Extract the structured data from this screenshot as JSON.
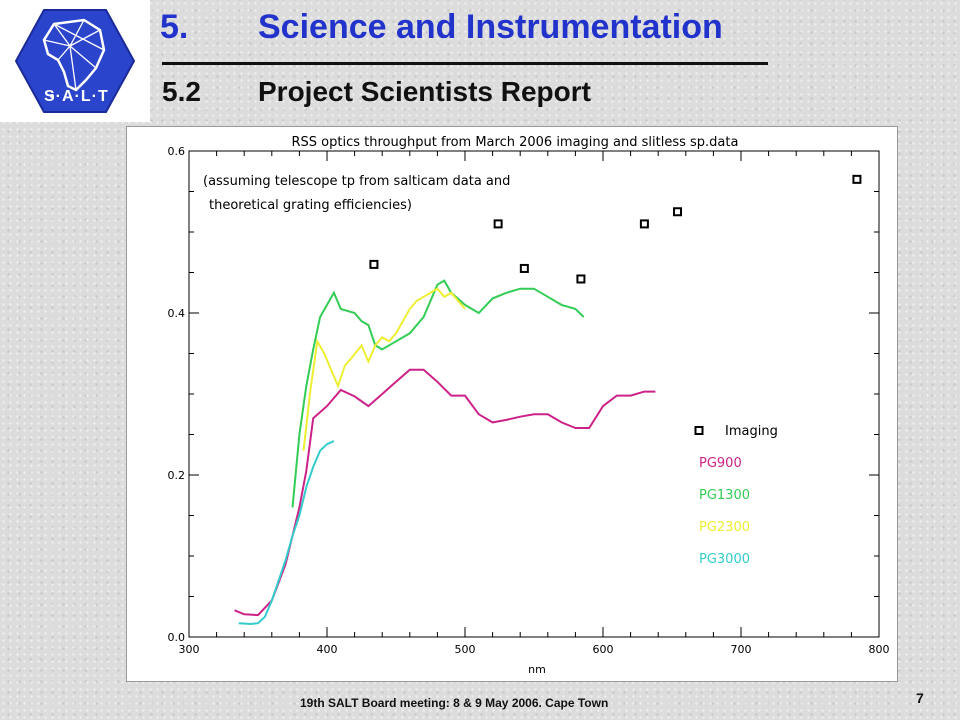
{
  "slide": {
    "section_number": "5.",
    "section_title": "Science and Instrumentation",
    "subsection_number": "5.2",
    "subsection_title": "Project Scientists Report",
    "footer": "19th SALT Board meeting: 8 & 9 May 2006. Cape Town",
    "page_number": "7",
    "logo_text": "S·A·L·T",
    "accent_color": "#2233cc"
  },
  "chart_data": {
    "type": "line",
    "title": "RSS optics throughput from March 2006 imaging and slitless sp.data",
    "annotation_line1": "(assuming telescope tp from salticam data and",
    "annotation_line2": "theoretical grating efficiencies)",
    "xlabel": "nm",
    "ylabel": "",
    "xlim": [
      300,
      800
    ],
    "ylim": [
      0.0,
      0.6
    ],
    "x_ticks": [
      300,
      400,
      500,
      600,
      700,
      800
    ],
    "x_tick_labels": [
      "300",
      "400",
      "500",
      "600",
      "700",
      "800"
    ],
    "y_ticks": [
      0.0,
      0.2,
      0.4,
      0.6
    ],
    "y_tick_labels": [
      "0.0",
      "0.2",
      "0.4",
      "0.6"
    ],
    "grid": false,
    "legend_position": "right",
    "series": [
      {
        "name": "Imaging",
        "kind": "scatter",
        "color": "#000000",
        "x": [
          434,
          524,
          543,
          584,
          630,
          654,
          784
        ],
        "y": [
          0.46,
          0.51,
          0.455,
          0.442,
          0.51,
          0.525,
          0.565
        ]
      },
      {
        "name": "PG900",
        "kind": "line",
        "color": "#cc2288",
        "x": [
          333,
          340,
          350,
          360,
          370,
          380,
          385,
          390,
          400,
          410,
          420,
          430,
          440,
          450,
          460,
          470,
          480,
          490,
          500,
          510,
          520,
          530,
          540,
          550,
          560,
          570,
          580,
          590,
          600,
          610,
          620,
          630,
          638
        ],
        "y": [
          0.033,
          0.028,
          0.027,
          0.045,
          0.09,
          0.16,
          0.205,
          0.27,
          0.285,
          0.305,
          0.297,
          0.285,
          0.3,
          0.315,
          0.33,
          0.33,
          0.315,
          0.298,
          0.298,
          0.275,
          0.265,
          0.268,
          0.272,
          0.275,
          0.275,
          0.265,
          0.258,
          0.258,
          0.285,
          0.298,
          0.298,
          0.303,
          0.303
        ]
      },
      {
        "name": "PG1300",
        "kind": "line",
        "color": "#33cc55",
        "x": [
          375,
          380,
          385,
          390,
          395,
          400,
          405,
          410,
          420,
          425,
          430,
          435,
          440,
          450,
          460,
          470,
          475,
          480,
          485,
          490,
          500,
          510,
          520,
          530,
          540,
          550,
          560,
          570,
          580,
          586
        ],
        "y": [
          0.16,
          0.25,
          0.31,
          0.355,
          0.395,
          0.41,
          0.425,
          0.405,
          0.4,
          0.39,
          0.385,
          0.36,
          0.355,
          0.365,
          0.375,
          0.395,
          0.415,
          0.435,
          0.44,
          0.425,
          0.41,
          0.4,
          0.418,
          0.425,
          0.43,
          0.43,
          0.42,
          0.41,
          0.405,
          0.395
        ]
      },
      {
        "name": "PG2300",
        "kind": "line",
        "color": "#eeee33",
        "x": [
          383,
          388,
          393,
          398,
          403,
          408,
          413,
          418,
          425,
          430,
          435,
          440,
          445,
          450,
          455,
          460,
          465,
          470,
          475,
          480,
          485,
          490,
          495,
          500
        ],
        "y": [
          0.23,
          0.305,
          0.365,
          0.35,
          0.33,
          0.31,
          0.335,
          0.345,
          0.36,
          0.34,
          0.36,
          0.37,
          0.365,
          0.375,
          0.39,
          0.405,
          0.415,
          0.42,
          0.425,
          0.43,
          0.42,
          0.425,
          0.415,
          0.405
        ]
      },
      {
        "name": "PG3000",
        "kind": "line",
        "color": "#33cccc",
        "x": [
          336,
          345,
          350,
          355,
          360,
          365,
          370,
          375,
          380,
          385,
          390,
          395,
          400,
          405
        ],
        "y": [
          0.017,
          0.016,
          0.017,
          0.025,
          0.045,
          0.07,
          0.095,
          0.125,
          0.15,
          0.185,
          0.21,
          0.23,
          0.238,
          0.242
        ]
      }
    ]
  }
}
